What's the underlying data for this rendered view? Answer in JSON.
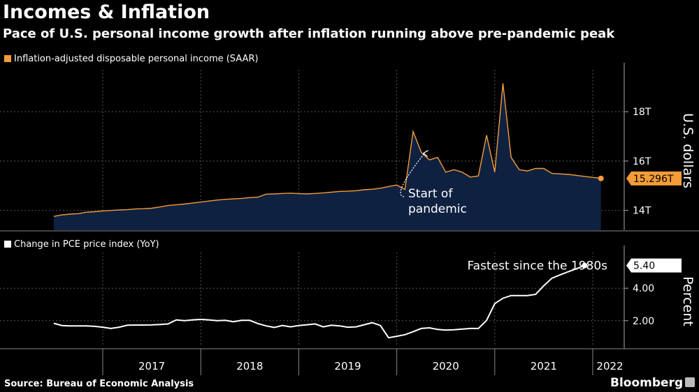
{
  "title": "Incomes & Inflation",
  "subtitle": "Pace of U.S. personal income growth after inflation running above pre-pandemic peak",
  "source": "Source: Bureau of Economic Analysis",
  "brand": "Bloomberg",
  "colors": {
    "income": "#f39c38",
    "income_fill": "#0f2140",
    "pce": "#ffffff",
    "grid": "#555555",
    "background": "#000000"
  },
  "chart_data": [
    {
      "type": "area",
      "legend": "Inflation-adjusted disposable personal income (SAAR)",
      "ylabel": "U.S. dollars",
      "ylim": [
        13.2,
        19.7
      ],
      "yticks": [
        {
          "v": 14,
          "label": "14T"
        },
        {
          "v": 16,
          "label": "16T"
        },
        {
          "v": 18,
          "label": "18T"
        }
      ],
      "last_value": 15.296,
      "last_label": "15.296T",
      "annotation": [
        "Start of",
        "pandemic"
      ],
      "x_start": "2016-07",
      "values": [
        13.76,
        13.82,
        13.85,
        13.87,
        13.93,
        13.95,
        13.98,
        14.0,
        14.02,
        14.03,
        14.06,
        14.07,
        14.09,
        14.14,
        14.2,
        14.23,
        14.26,
        14.3,
        14.34,
        14.38,
        14.42,
        14.45,
        14.47,
        14.49,
        14.52,
        14.54,
        14.66,
        14.67,
        14.69,
        14.7,
        14.68,
        14.67,
        14.69,
        14.71,
        14.74,
        14.77,
        14.78,
        14.8,
        14.84,
        14.86,
        14.9,
        14.97,
        15.03,
        14.85,
        17.2,
        16.35,
        16.05,
        16.15,
        15.55,
        15.65,
        15.55,
        15.35,
        15.4,
        17.05,
        15.55,
        19.15,
        16.15,
        15.65,
        15.6,
        15.7,
        15.7,
        15.5,
        15.48,
        15.46,
        15.42,
        15.38,
        15.34,
        15.296
      ]
    },
    {
      "type": "line",
      "legend": "Change in PCE price index (YoY)",
      "ylabel": "Percent",
      "ylim": [
        0.4,
        6.2
      ],
      "yticks": [
        {
          "v": 2,
          "label": "2.00"
        },
        {
          "v": 4,
          "label": "4.00"
        }
      ],
      "last_value": 5.4,
      "last_label": "5.40",
      "annotation": "Fastest since the 1980s",
      "x_start": "2016-07",
      "values": [
        1.84,
        1.7,
        1.68,
        1.68,
        1.68,
        1.65,
        1.6,
        1.52,
        1.6,
        1.72,
        1.73,
        1.73,
        1.74,
        1.76,
        1.8,
        2.05,
        2.0,
        2.05,
        2.08,
        2.05,
        2.0,
        2.02,
        1.94,
        2.02,
        2.02,
        1.82,
        1.68,
        1.58,
        1.7,
        1.62,
        1.7,
        1.75,
        1.8,
        1.62,
        1.72,
        1.68,
        1.6,
        1.62,
        1.75,
        1.88,
        1.7,
        0.95,
        1.04,
        1.14,
        1.32,
        1.52,
        1.56,
        1.46,
        1.42,
        1.44,
        1.48,
        1.52,
        1.52,
        2.02,
        3.05,
        3.38,
        3.55,
        3.55,
        3.55,
        3.62,
        4.15,
        4.62,
        4.82,
        5.02,
        5.2,
        5.4
      ]
    }
  ],
  "x_axis": {
    "labels": [
      "2017",
      "2018",
      "2019",
      "2020",
      "2021",
      "2022"
    ],
    "year_starts": [
      "2017-01",
      "2018-01",
      "2019-01",
      "2020-01",
      "2021-01",
      "2022-01"
    ]
  }
}
